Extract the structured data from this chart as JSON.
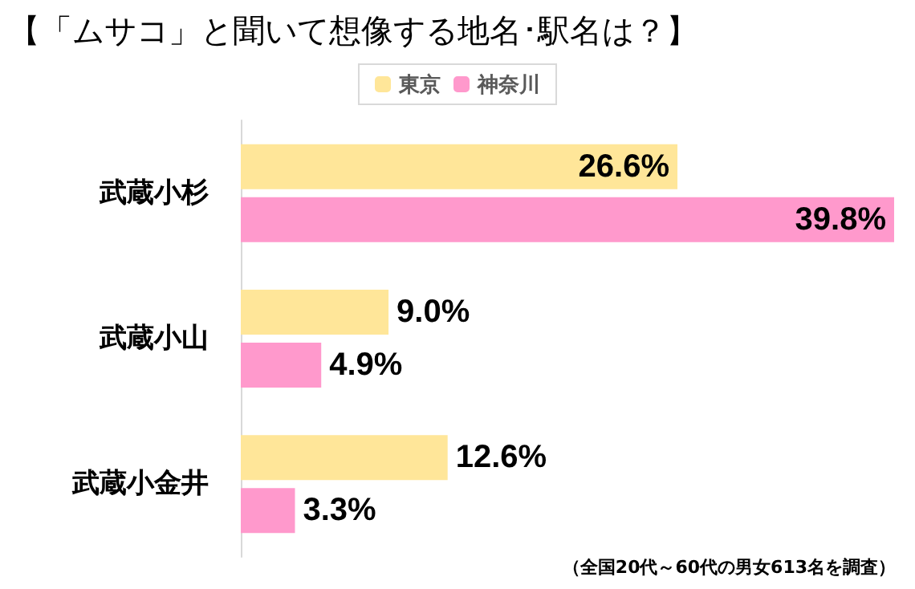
{
  "chart_data": {
    "type": "bar",
    "orientation": "horizontal",
    "title": "【「ムサコ」と聞いて想像する地名･駅名は？】",
    "categories": [
      "武蔵小杉",
      "武蔵小山",
      "武蔵小金井"
    ],
    "series": [
      {
        "name": "東京",
        "color": "#ffe699",
        "values": [
          26.6,
          9.0,
          12.6
        ],
        "value_labels": [
          "26.6%",
          "9.0%",
          "12.6%"
        ]
      },
      {
        "name": "神奈川",
        "color": "#ff99cc",
        "values": [
          39.8,
          4.9,
          3.3
        ],
        "value_labels": [
          "39.8%",
          "4.9%",
          "3.3%"
        ]
      }
    ],
    "legend": "top",
    "annotations": [
      "（全国20代～60代の男女613名を調査）"
    ]
  }
}
